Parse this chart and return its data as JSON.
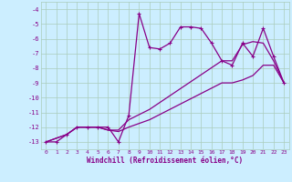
{
  "xlabel": "Windchill (Refroidissement éolien,°C)",
  "background_color": "#cceeff",
  "grid_color": "#aaccbb",
  "line_color": "#880088",
  "x_ticks": [
    0,
    1,
    2,
    3,
    4,
    5,
    6,
    7,
    8,
    9,
    10,
    11,
    12,
    13,
    14,
    15,
    16,
    17,
    18,
    19,
    20,
    21,
    22,
    23
  ],
  "ylim": [
    -13.5,
    -3.5
  ],
  "yticks": [
    -13,
    -12,
    -11,
    -10,
    -9,
    -8,
    -7,
    -6,
    -5,
    -4
  ],
  "line1_x": [
    0,
    1,
    2,
    3,
    4,
    5,
    6,
    7,
    8,
    9,
    10,
    11,
    12,
    13,
    14,
    15,
    16,
    17,
    18,
    19,
    20,
    21,
    22,
    23
  ],
  "line1_y": [
    -13,
    -13,
    -12.5,
    -12,
    -12,
    -12,
    -12,
    -13,
    -11.2,
    -4.3,
    -6.6,
    -6.7,
    -6.3,
    -5.2,
    -5.2,
    -5.3,
    -6.3,
    -7.5,
    -7.8,
    -6.3,
    -7.2,
    -5.3,
    -7.2,
    -9.0
  ],
  "line2_x": [
    0,
    2,
    3,
    4,
    5,
    6,
    7,
    8,
    10,
    17,
    18,
    19,
    20,
    21,
    22,
    23
  ],
  "line2_y": [
    -13,
    -12.5,
    -12,
    -12,
    -12,
    -12.2,
    -12.2,
    -11.5,
    -10.8,
    -7.5,
    -7.5,
    -6.4,
    -6.2,
    -6.3,
    -7.5,
    -9.0
  ],
  "line3_x": [
    0,
    2,
    3,
    4,
    5,
    6,
    7,
    8,
    10,
    17,
    18,
    19,
    20,
    21,
    22,
    23
  ],
  "line3_y": [
    -13,
    -12.5,
    -12,
    -12,
    -12,
    -12.2,
    -12.3,
    -12.0,
    -11.5,
    -9.0,
    -9.0,
    -8.8,
    -8.5,
    -7.8,
    -7.8,
    -9.0
  ]
}
